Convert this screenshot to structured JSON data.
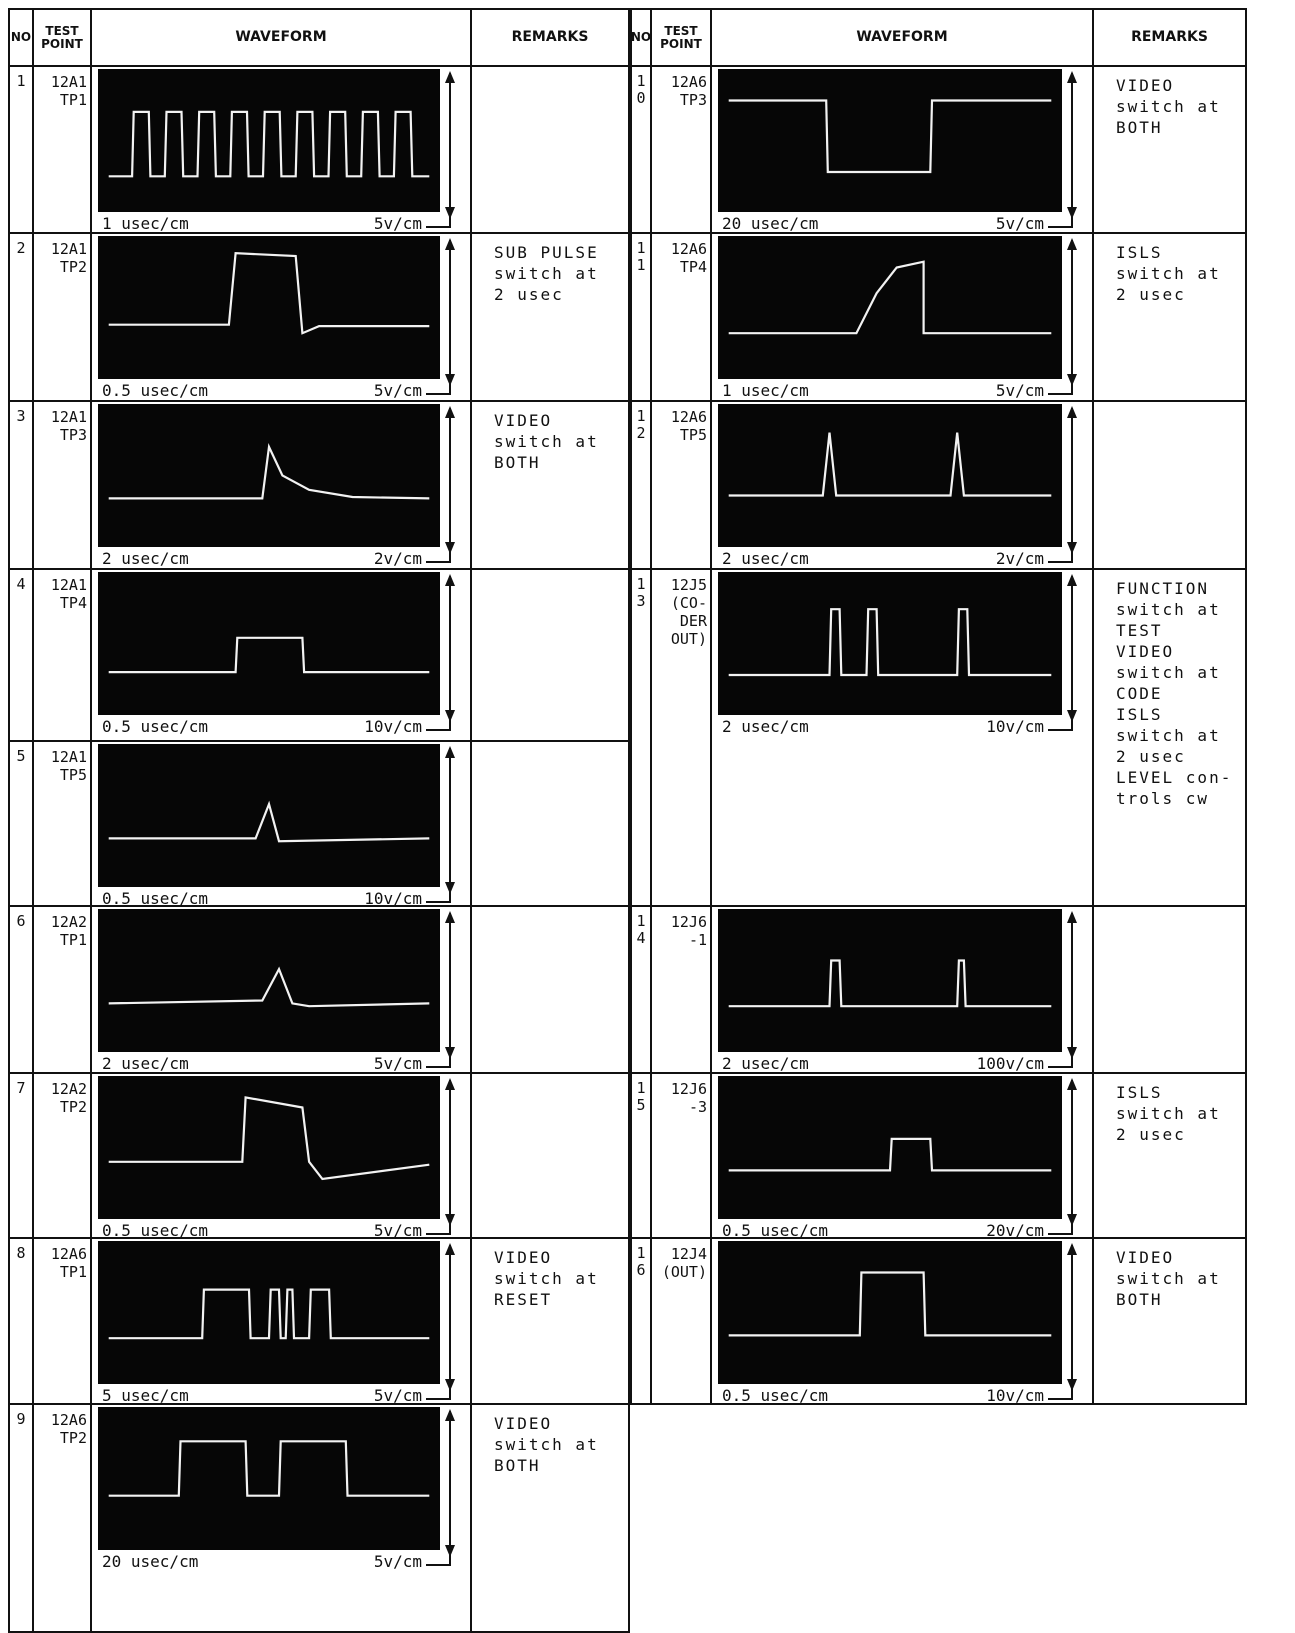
{
  "tables": [
    {
      "header": {
        "no": "NO",
        "test_point": [
          "TEST",
          "POINT"
        ],
        "waveform": "WAVEFORM",
        "remarks": "REMARKS"
      },
      "rows": [
        {
          "no": "1",
          "test_point": [
            "12A1",
            "TP1"
          ],
          "time": "1 usec/cm",
          "volts": "5v/cm"
        },
        {
          "no": "2",
          "test_point": [
            "12A1",
            "TP2"
          ],
          "time": "0.5 usec/cm",
          "volts": "5v/cm",
          "remarks": [
            "SUB PULSE",
            "switch at",
            "2 usec"
          ]
        },
        {
          "no": "3",
          "test_point": [
            "12A1",
            "TP3"
          ],
          "time": "2 usec/cm",
          "volts": "2v/cm",
          "remarks": [
            "VIDEO",
            "switch at",
            "BOTH"
          ]
        },
        {
          "no": "4",
          "test_point": [
            "12A1",
            "TP4"
          ],
          "time": "0.5 usec/cm",
          "volts": "10v/cm"
        },
        {
          "no": "5",
          "test_point": [
            "12A1",
            "TP5"
          ],
          "time": "0.5 usec/cm",
          "volts": "10v/cm"
        },
        {
          "no": "6",
          "test_point": [
            "12A2",
            "TP1"
          ],
          "time": "2 usec/cm",
          "volts": "5v/cm"
        },
        {
          "no": "7",
          "test_point": [
            "12A2",
            "TP2"
          ],
          "time": "0.5 usec/cm",
          "volts": "5v/cm"
        },
        {
          "no": "8",
          "test_point": [
            "12A6",
            "TP1"
          ],
          "time": "5 usec/cm",
          "volts": "5v/cm",
          "remarks": [
            "VIDEO",
            "switch at",
            "RESET"
          ]
        },
        {
          "no": "9",
          "test_point": [
            "12A6",
            "TP2"
          ],
          "time": "20 usec/cm",
          "volts": "5v/cm",
          "remarks": [
            "VIDEO",
            "switch at",
            "BOTH"
          ]
        }
      ]
    },
    {
      "header": {
        "no": "NO",
        "test_point": [
          "TEST",
          "POINT"
        ],
        "waveform": "WAVEFORM",
        "remarks": "REMARKS"
      },
      "rows": [
        {
          "no": "10",
          "test_point": [
            "12A6",
            "TP3"
          ],
          "time": "20 usec/cm",
          "volts": "5v/cm",
          "remarks": [
            "VIDEO",
            "switch at",
            "BOTH"
          ]
        },
        {
          "no": "11",
          "test_point": [
            "12A6",
            "TP4"
          ],
          "time": "1 usec/cm",
          "volts": "5v/cm",
          "remarks": [
            "ISLS",
            "switch at",
            "2 usec"
          ]
        },
        {
          "no": "12",
          "test_point": [
            "12A6",
            "TP5"
          ],
          "time": "2 usec/cm",
          "volts": "2v/cm"
        },
        {
          "no": "13",
          "test_point": [
            "12J5",
            "(CO-",
            "DER",
            "OUT)"
          ],
          "time": "2 usec/cm",
          "volts": "10v/cm",
          "remarks": [
            "FUNCTION",
            "switch at",
            "TEST",
            "VIDEO",
            "switch at",
            "CODE",
            "ISLS",
            "switch at",
            "2 usec",
            "LEVEL con-",
            "trols cw"
          ]
        },
        {
          "no": "14",
          "test_point": [
            "12J6",
            "-1"
          ],
          "time": "2 usec/cm",
          "volts": "100v/cm"
        },
        {
          "no": "15",
          "test_point": [
            "12J6",
            "-3"
          ],
          "time": "0.5 usec/cm",
          "volts": "20v/cm",
          "remarks": [
            "ISLS",
            "switch at",
            "2 usec"
          ]
        },
        {
          "no": "16",
          "test_point": [
            "12J4",
            "(OUT)"
          ],
          "time": "0.5 usec/cm",
          "volts": "10v/cm",
          "remarks": [
            "VIDEO",
            "switch at",
            "BOTH"
          ]
        }
      ]
    }
  ]
}
